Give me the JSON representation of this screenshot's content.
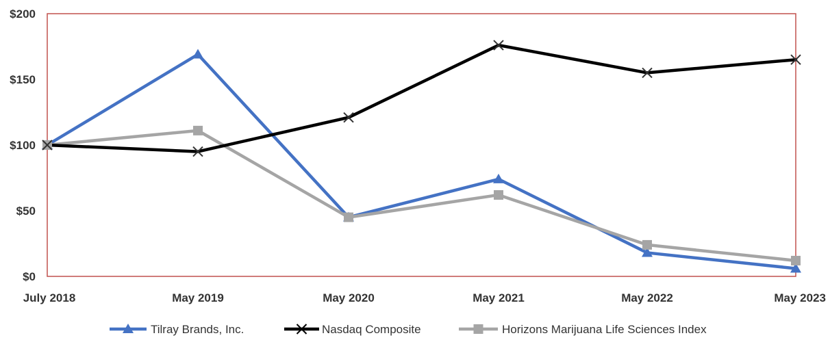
{
  "chart_data": {
    "type": "line",
    "categories": [
      "July 2018",
      "May 2019",
      "May 2020",
      "May 2021",
      "May 2022",
      "May 2023"
    ],
    "y_tick_labels": [
      "$0",
      "$50",
      "$100",
      "$150",
      "$200"
    ],
    "y_tick_values": [
      0,
      50,
      100,
      150,
      200
    ],
    "ylim": [
      0,
      200
    ],
    "grid": false,
    "legend_position": "bottom",
    "series": [
      {
        "name": "Tilray Brands, Inc.",
        "values": [
          100,
          169,
          45,
          74,
          18,
          6
        ],
        "color": "#4472c4",
        "marker": "triangle"
      },
      {
        "name": "Nasdaq Composite",
        "values": [
          100,
          95,
          121,
          176,
          155,
          165
        ],
        "color": "#000000",
        "marker": "x"
      },
      {
        "name": "Horizons Marijuana Life Sciences Index",
        "values": [
          100,
          111,
          45,
          62,
          24,
          12
        ],
        "color": "#a5a5a5",
        "marker": "square"
      }
    ],
    "plot_border_color": "#c0504d"
  }
}
